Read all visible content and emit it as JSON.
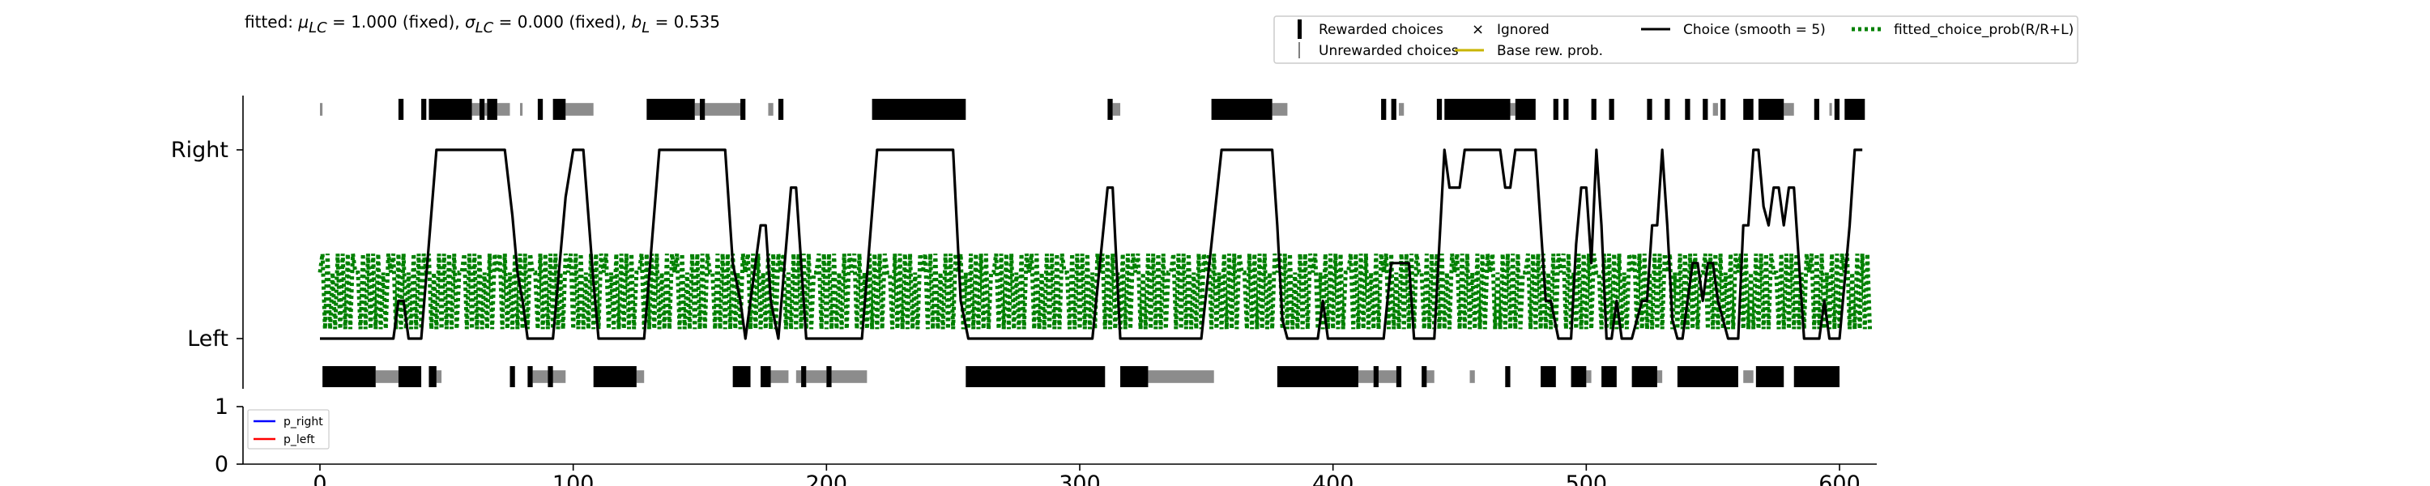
{
  "chart_data": {
    "type": "line",
    "title": {
      "prefix": "fitted: ",
      "parts": [
        {
          "sym": "μ",
          "sub": "LC",
          "rest": " = 1.000 (fixed), "
        },
        {
          "sym": "σ",
          "sub": "LC",
          "rest": " = 0.000 (fixed), "
        },
        {
          "sym": "b",
          "sub": "L",
          "rest": " = 0.535"
        }
      ]
    },
    "xlim": [
      -30,
      615
    ],
    "xticks": [
      0,
      100,
      200,
      300,
      400,
      500,
      600
    ],
    "top_panel": {
      "yticks": [
        {
          "value": 0,
          "label": "Left"
        },
        {
          "value": 1,
          "label": "Right"
        }
      ],
      "ylim": [
        -0.27,
        1.27
      ],
      "choice_smooth": [
        [
          0,
          0
        ],
        [
          29,
          0
        ],
        [
          31,
          0.2
        ],
        [
          33,
          0.2
        ],
        [
          35,
          0
        ],
        [
          40,
          0
        ],
        [
          46,
          1
        ],
        [
          73,
          1
        ],
        [
          76,
          0.65
        ],
        [
          78,
          0.35
        ],
        [
          80,
          0.2
        ],
        [
          82,
          0
        ],
        [
          92,
          0
        ],
        [
          97,
          0.75
        ],
        [
          100,
          1
        ],
        [
          104,
          1
        ],
        [
          108,
          0.3
        ],
        [
          110,
          0
        ],
        [
          128,
          0
        ],
        [
          134,
          1
        ],
        [
          160,
          1
        ],
        [
          163,
          0.4
        ],
        [
          166,
          0.2
        ],
        [
          168,
          0
        ],
        [
          172,
          0.4
        ],
        [
          174,
          0.6
        ],
        [
          176,
          0.6
        ],
        [
          178,
          0.2
        ],
        [
          181,
          0
        ],
        [
          186,
          0.8
        ],
        [
          188,
          0.8
        ],
        [
          192,
          0
        ],
        [
          214,
          0
        ],
        [
          220,
          1
        ],
        [
          250,
          1
        ],
        [
          253,
          0.2
        ],
        [
          256,
          0
        ],
        [
          305,
          0
        ],
        [
          311,
          0.8
        ],
        [
          313,
          0.8
        ],
        [
          316,
          0
        ],
        [
          348,
          0
        ],
        [
          356,
          1
        ],
        [
          376,
          1
        ],
        [
          378,
          0.6
        ],
        [
          380,
          0.1
        ],
        [
          382,
          0
        ],
        [
          394,
          0
        ],
        [
          396,
          0.2
        ],
        [
          398,
          0
        ],
        [
          420,
          0
        ],
        [
          423,
          0.4
        ],
        [
          430,
          0.4
        ],
        [
          432,
          0
        ],
        [
          440,
          0
        ],
        [
          444,
          1
        ],
        [
          446,
          0.8
        ],
        [
          450,
          0.8
        ],
        [
          452,
          1
        ],
        [
          466,
          1
        ],
        [
          468,
          0.8
        ],
        [
          470,
          0.8
        ],
        [
          472,
          1
        ],
        [
          480,
          1
        ],
        [
          484,
          0.2
        ],
        [
          486,
          0.2
        ],
        [
          489,
          0
        ],
        [
          494,
          0
        ],
        [
          496,
          0.5
        ],
        [
          498,
          0.8
        ],
        [
          500,
          0.8
        ],
        [
          502,
          0.4
        ],
        [
          504,
          1
        ],
        [
          506,
          0.6
        ],
        [
          508,
          0
        ],
        [
          510,
          0
        ],
        [
          512,
          0.2
        ],
        [
          514,
          0
        ],
        [
          518,
          0
        ],
        [
          522,
          0.2
        ],
        [
          524,
          0.2
        ],
        [
          526,
          0.6
        ],
        [
          528,
          0.6
        ],
        [
          530,
          1
        ],
        [
          532,
          0.6
        ],
        [
          534,
          0.1
        ],
        [
          536,
          0
        ],
        [
          538,
          0
        ],
        [
          540,
          0.2
        ],
        [
          542,
          0.4
        ],
        [
          544,
          0.4
        ],
        [
          546,
          0.2
        ],
        [
          548,
          0.4
        ],
        [
          550,
          0.4
        ],
        [
          552,
          0.2
        ],
        [
          556,
          0
        ],
        [
          560,
          0
        ],
        [
          562,
          0.6
        ],
        [
          564,
          0.6
        ],
        [
          566,
          1
        ],
        [
          568,
          1
        ],
        [
          570,
          0.7
        ],
        [
          572,
          0.6
        ],
        [
          574,
          0.8
        ],
        [
          576,
          0.8
        ],
        [
          578,
          0.6
        ],
        [
          580,
          0.8
        ],
        [
          582,
          0.8
        ],
        [
          584,
          0.4
        ],
        [
          586,
          0
        ],
        [
          592,
          0
        ],
        [
          594,
          0.2
        ],
        [
          596,
          0
        ],
        [
          600,
          0
        ],
        [
          602,
          0.3
        ],
        [
          604,
          0.6
        ],
        [
          606,
          1
        ],
        [
          609,
          1
        ]
      ],
      "fitted_choice_prob": {
        "baseline": 0.05,
        "high": 0.45,
        "mid": 0.35
      },
      "right_choices": {
        "rewarded_segments": [
          [
            31,
            33
          ],
          [
            40,
            42
          ],
          [
            43,
            60
          ],
          [
            63,
            65
          ],
          [
            66,
            70
          ],
          [
            86,
            88
          ],
          [
            92,
            97
          ],
          [
            129,
            148
          ],
          [
            150,
            152
          ],
          [
            166,
            168
          ],
          [
            181,
            183
          ],
          [
            218,
            255
          ],
          [
            311,
            313
          ],
          [
            352,
            376
          ],
          [
            419,
            421
          ],
          [
            423,
            425
          ],
          [
            441,
            443
          ],
          [
            444,
            470
          ],
          [
            472,
            480
          ],
          [
            487,
            489
          ],
          [
            491,
            493
          ],
          [
            502,
            504
          ],
          [
            509,
            511
          ],
          [
            524,
            526
          ],
          [
            531,
            533
          ],
          [
            539,
            541
          ],
          [
            546,
            548
          ],
          [
            553,
            555
          ],
          [
            562,
            566
          ],
          [
            568,
            578
          ],
          [
            590,
            592
          ],
          [
            598,
            600
          ],
          [
            602,
            610
          ]
        ],
        "unrewarded_segments": [
          [
            0,
            1
          ],
          [
            60,
            63
          ],
          [
            65,
            66
          ],
          [
            70,
            75
          ],
          [
            79,
            80
          ],
          [
            97,
            108
          ],
          [
            148,
            150
          ],
          [
            152,
            166
          ],
          [
            177,
            179
          ],
          [
            313,
            316
          ],
          [
            376,
            382
          ],
          [
            426,
            428
          ],
          [
            470,
            472
          ],
          [
            550,
            552
          ],
          [
            578,
            582
          ],
          [
            596,
            597
          ]
        ]
      },
      "left_choices": {
        "rewarded_segments": [
          [
            1,
            22
          ],
          [
            31,
            40
          ],
          [
            43,
            46
          ],
          [
            75,
            77
          ],
          [
            82,
            84
          ],
          [
            90,
            92
          ],
          [
            108,
            125
          ],
          [
            163,
            170
          ],
          [
            174,
            178
          ],
          [
            190,
            192
          ],
          [
            200,
            202
          ],
          [
            255,
            310
          ],
          [
            316,
            327
          ],
          [
            378,
            410
          ],
          [
            416,
            418
          ],
          [
            425,
            427
          ],
          [
            435,
            437
          ],
          [
            468,
            470
          ],
          [
            482,
            488
          ],
          [
            494,
            500
          ],
          [
            506,
            512
          ],
          [
            518,
            528
          ],
          [
            536,
            560
          ],
          [
            567,
            578
          ],
          [
            582,
            600
          ]
        ],
        "unrewarded_segments": [
          [
            22,
            31
          ],
          [
            46,
            48
          ],
          [
            84,
            97
          ],
          [
            125,
            128
          ],
          [
            178,
            185
          ],
          [
            188,
            190
          ],
          [
            192,
            200
          ],
          [
            202,
            216
          ],
          [
            327,
            353
          ],
          [
            410,
            416
          ],
          [
            418,
            425
          ],
          [
            437,
            440
          ],
          [
            454,
            456
          ],
          [
            500,
            502
          ],
          [
            528,
            530
          ],
          [
            562,
            566
          ]
        ]
      }
    },
    "bottom_panel": {
      "yticks": [
        0,
        1
      ],
      "ylim": [
        0,
        1
      ],
      "legend": [
        "p_right",
        "p_left"
      ],
      "colors": {
        "p_right": "#0000ff",
        "p_left": "#ff0000"
      }
    },
    "legend": {
      "placement": "top-right",
      "entries": [
        {
          "label": "Rewarded choices",
          "kind": "bar",
          "color": "#000000"
        },
        {
          "label": "Ignored",
          "kind": "x",
          "color": "#ff0000"
        },
        {
          "label": "Choice (smooth = 5)",
          "kind": "line",
          "color": "#000000"
        },
        {
          "label": "fitted_choice_prob(R/R+L)",
          "kind": "dotted",
          "color": "#008000"
        },
        {
          "label": "Unrewarded choices",
          "kind": "thinbar",
          "color": "#808080"
        },
        {
          "label": "Base rew. prob.",
          "kind": "line",
          "color": "#c8b400"
        }
      ]
    },
    "colors": {
      "choice": "#000000",
      "fitted": "#008000",
      "rewarded": "#000000",
      "unrewarded": "#8c8c8c",
      "axis": "#000000"
    }
  }
}
